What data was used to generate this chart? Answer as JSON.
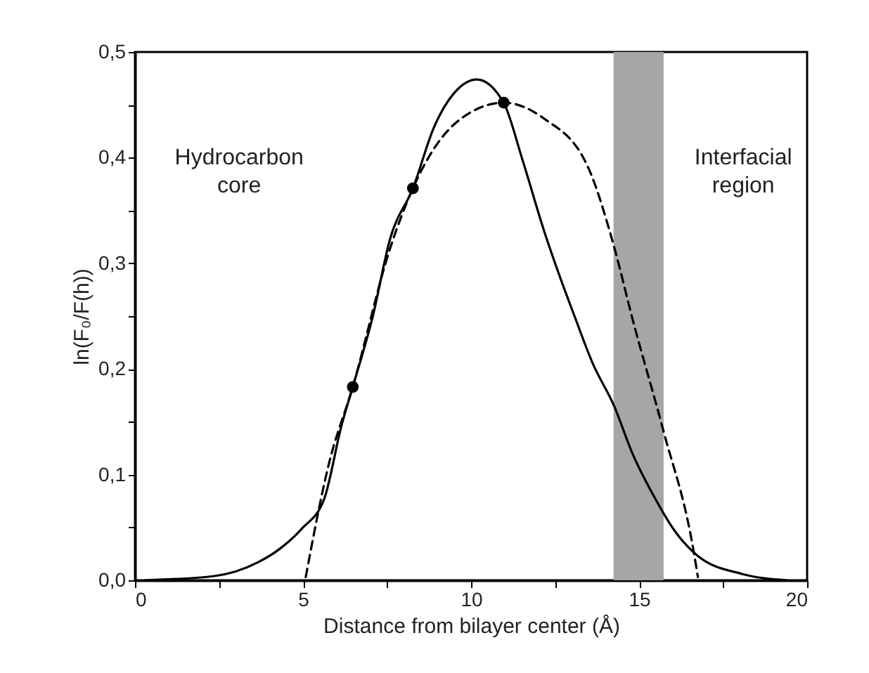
{
  "chart_data": {
    "type": "line",
    "xlabel": "Distance from bilayer center (Å)",
    "ylabel": "ln(F₀/F(h))",
    "xlim": [
      0,
      20
    ],
    "ylim": [
      0,
      0.5
    ],
    "xticks": [
      0,
      {
        "value": 2.5,
        "label": null
      },
      5,
      {
        "value": 7.5,
        "label": null
      },
      10,
      {
        "value": 12.5,
        "label": null
      },
      15,
      {
        "value": 17.5,
        "label": null
      },
      20
    ],
    "yticks": [
      {
        "value": 0,
        "label": "0,0"
      },
      {
        "value": 0.05,
        "label": null
      },
      {
        "value": 0.1,
        "label": "0,1"
      },
      {
        "value": 0.15,
        "label": null
      },
      {
        "value": 0.2,
        "label": "0,2"
      },
      {
        "value": 0.25,
        "label": null
      },
      {
        "value": 0.3,
        "label": "0,3"
      },
      {
        "value": 0.35,
        "label": null
      },
      {
        "value": 0.4,
        "label": "0,4"
      },
      {
        "value": 0.45,
        "label": null
      },
      {
        "value": 0.5,
        "label": "0,5"
      }
    ],
    "grid": false,
    "series": [
      {
        "color": "#000000",
        "line_style": "solid",
        "x": [
          0.3,
          2.36,
          3.66,
          4.32,
          4.97,
          5.63,
          6.15,
          6.48,
          7.07,
          7.59,
          8.27,
          8.9,
          9.55,
          10.17,
          10.97,
          11.52,
          12.17,
          12.83,
          13.09,
          13.61,
          14.27,
          14.79,
          15.45,
          16.1,
          16.75,
          18.06,
          19.4
        ],
        "values": [
          0,
          0.004,
          0.017,
          0.03,
          0.049,
          0.077,
          0.147,
          0.183,
          0.249,
          0.323,
          0.371,
          0.429,
          0.463,
          0.474,
          0.452,
          0.399,
          0.331,
          0.271,
          0.249,
          0.206,
          0.164,
          0.121,
          0.079,
          0.045,
          0.023,
          0.006,
          0
        ]
      },
      {
        "color": "#000000",
        "line_style": "dashed",
        "x": [
          5.08,
          5.76,
          6.48,
          7.59,
          8.27,
          9.55,
          10.97,
          12.17,
          13.48,
          14.27,
          14.79,
          15.71,
          16.62,
          16.75
        ],
        "values": [
          0.003,
          0.109,
          0.183,
          0.314,
          0.371,
          0.433,
          0.452,
          0.437,
          0.391,
          0.314,
          0.249,
          0.143,
          0.028,
          0.003
        ]
      },
      {
        "type": "scatter",
        "color": "#000000",
        "marker": "circle",
        "x": [
          6.48,
          8.27,
          10.97
        ],
        "values": [
          0.183,
          0.371,
          0.452
        ]
      }
    ],
    "bands": [
      {
        "axis": "x",
        "from": 14.24,
        "to": 15.73,
        "color": "#a6a6a6"
      }
    ],
    "annotations": [
      "Hydrocarbon\ncore",
      "Interfacial\nregion"
    ]
  }
}
